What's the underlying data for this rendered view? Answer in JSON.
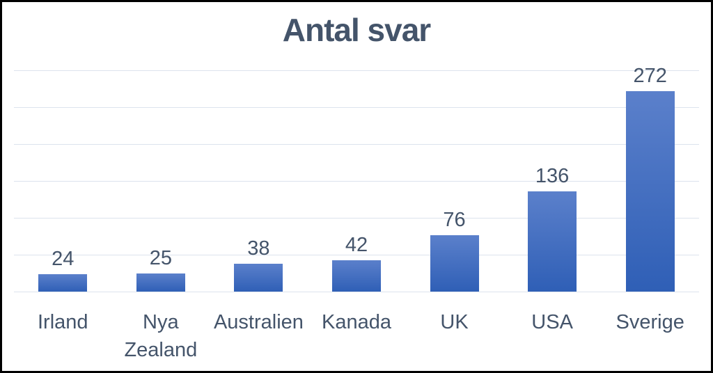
{
  "window": {
    "background": "#ffffff",
    "frame_border_color": "#000000"
  },
  "chart_data": {
    "type": "bar",
    "title": "Antal svar",
    "categories": [
      "Irland",
      "Nya Zealand",
      "Australien",
      "Kanada",
      "UK",
      "USA",
      "Sverige"
    ],
    "tick_labels": [
      "Irland",
      "Nya\nZealand",
      "Australien",
      "Kanada",
      "UK",
      "USA",
      "Sverige"
    ],
    "values": [
      24,
      25,
      38,
      42,
      76,
      136,
      272
    ],
    "data_labels": [
      24,
      25,
      38,
      42,
      76,
      136,
      272
    ],
    "xlabel": "",
    "ylabel": "",
    "ylim": [
      0,
      300
    ],
    "gridline_step": 50,
    "grid": true,
    "y_axis_labels_visible": false,
    "legend_position": "none",
    "colors": {
      "bar_gradient_top": "#5b80cb",
      "bar_gradient_bottom": "#2f5fb6",
      "text": "#44546a",
      "gridline": "#dce3ed"
    }
  }
}
